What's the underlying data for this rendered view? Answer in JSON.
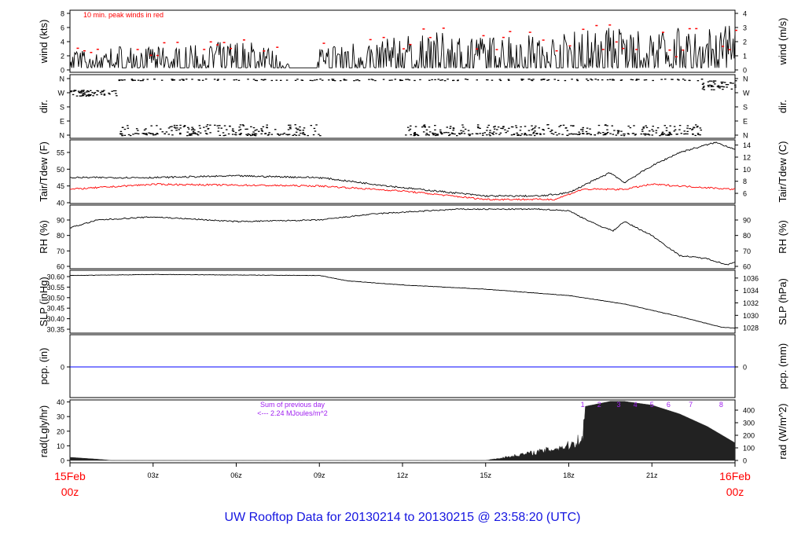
{
  "title": "UW Rooftop Data for 20130214  to  20130215 @ 23:58:20  (UTC)",
  "colors": {
    "main": "#000000",
    "peak": "#ff0000",
    "dew": "#ff0000",
    "pcp": "#0000ff",
    "annot": "#a020f0",
    "date": "#ff0000",
    "title": "#1515e0"
  },
  "chart_data": [
    {
      "type": "line",
      "ylabel": "wind (kts)",
      "ylabel_right": "wind (m/s)",
      "ylim": [
        0,
        8
      ],
      "ticks": [
        0,
        2,
        4,
        6,
        8
      ],
      "ticks_right": [
        0,
        1,
        2,
        3,
        4
      ],
      "annotation": "10 min. peak winds in red",
      "envelope_hours": [
        0,
        1,
        1.5,
        2.5,
        4,
        5,
        6,
        7,
        8,
        9,
        10,
        11,
        12,
        13,
        14,
        15,
        16,
        17,
        18,
        19,
        19.5,
        20,
        21,
        22,
        23,
        24
      ],
      "envelope_kts": [
        3,
        2,
        3.5,
        3,
        3,
        3.5,
        4,
        3.5,
        0.3,
        3,
        4,
        3.5,
        5,
        5,
        5,
        4.5,
        5,
        4.5,
        5,
        6,
        6.5,
        5.5,
        5,
        6,
        6,
        6
      ]
    },
    {
      "type": "scatter",
      "ylabel": "dir.",
      "ylabel_right": "dir.",
      "ticks": [
        "N",
        "E",
        "S",
        "W",
        "N"
      ]
    },
    {
      "type": "line",
      "ylabel": "Tair/Tdew (F)",
      "ylabel_right": "Tair/Tdew (C)",
      "ylim": [
        40,
        57.5
      ],
      "ticks": [
        40,
        45,
        50,
        55
      ],
      "ticks_right": [
        6,
        8,
        10,
        12,
        14
      ],
      "series": [
        {
          "hours": [
            0,
            3,
            6,
            9,
            12,
            15,
            17,
            18,
            19.5,
            20,
            21,
            22,
            23.3,
            24
          ],
          "values": [
            47.5,
            47.5,
            48,
            47.5,
            44.5,
            42,
            42,
            43,
            49,
            46,
            51,
            55,
            58,
            56
          ]
        },
        {
          "hours": [
            0,
            3,
            9,
            12,
            15,
            17.5,
            18.5,
            20,
            21,
            24
          ],
          "values": [
            44,
            45.5,
            45,
            43.5,
            41,
            41,
            44,
            44,
            45.5,
            44
          ]
        }
      ]
    },
    {
      "type": "line",
      "ylabel": "RH (%)",
      "ylabel_right": "RH (%)",
      "ylim": [
        60,
        97
      ],
      "ticks": [
        60,
        70,
        80,
        90
      ],
      "ticks_right": [
        60,
        70,
        80,
        90
      ],
      "hours": [
        0,
        1,
        3,
        6,
        9,
        11,
        14,
        17,
        18,
        19,
        19.6,
        20,
        21,
        22,
        23,
        23.7,
        24
      ],
      "values": [
        85,
        90,
        92,
        89,
        90,
        94,
        97,
        97,
        96,
        87,
        83,
        89,
        80,
        67,
        65,
        61,
        63
      ]
    },
    {
      "type": "line",
      "ylabel": "SLP (inHg)",
      "ylabel_right": "SLP (hPa)",
      "ylim": [
        30.34,
        30.63
      ],
      "ticks": [
        "30.35",
        "30.40",
        "30.45",
        "30.50",
        "30.55",
        "30.60"
      ],
      "ticks_right": [
        "1028",
        "1030",
        "1032",
        "1034",
        "1036"
      ],
      "hours": [
        0,
        3,
        9,
        10,
        12,
        15,
        18,
        20,
        22,
        23.5,
        24
      ],
      "values": [
        30.605,
        30.61,
        30.605,
        30.58,
        30.56,
        30.54,
        30.51,
        30.47,
        30.41,
        30.36,
        30.355
      ]
    },
    {
      "type": "line",
      "ylabel": "pcp. (in)",
      "ylabel_right": "pcp. (mm)",
      "ticks": [
        "0"
      ],
      "ticks_right": [
        "0"
      ],
      "value": 0
    },
    {
      "type": "area",
      "ylabel": "rad(Lgly/hr)",
      "ylabel_right": "rad (W/m^2)",
      "ylim_wm2": [
        0,
        480
      ],
      "ticks": [
        0,
        10,
        20,
        30,
        40
      ],
      "ticks_right": [
        0,
        100,
        200,
        300,
        400
      ],
      "annotation": [
        "Sum of previous day",
        "<--- 2.24 MJoules/m^2"
      ],
      "hours": [
        0,
        1,
        1.5,
        15,
        16,
        17,
        18,
        18.5,
        18.6,
        19.5,
        20,
        21,
        22,
        23,
        24
      ],
      "values": [
        25,
        10,
        0,
        0,
        40,
        80,
        130,
        200,
        430,
        470,
        470,
        440,
        370,
        270,
        140
      ],
      "hour_marks": {
        "labels": [
          "1",
          "2",
          "3",
          "4",
          "5",
          "6",
          "7",
          "8"
        ],
        "hours": [
          18.5,
          19.1,
          19.8,
          20.4,
          21,
          21.6,
          22.4,
          23.5
        ]
      }
    }
  ],
  "xaxis": {
    "start": [
      "15Feb",
      "00z"
    ],
    "end": [
      "16Feb",
      "00z"
    ],
    "ticks": [
      "03z",
      "06z",
      "09z",
      "12z",
      "15z",
      "18z",
      "21z"
    ]
  }
}
